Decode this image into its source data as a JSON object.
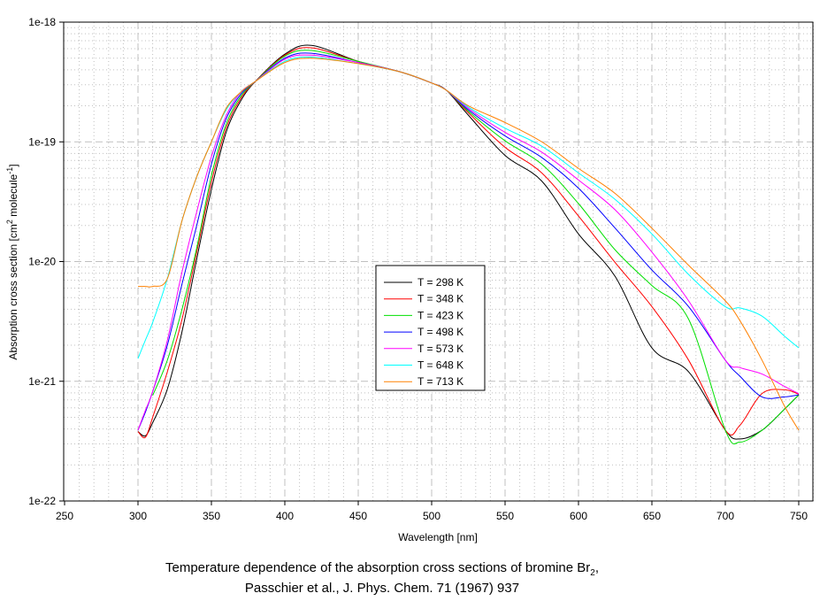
{
  "chart_data": {
    "type": "line",
    "title": "",
    "xlabel": "Wavelength [nm]",
    "ylabel_main": "Absorption cross section [cm",
    "ylabel_sup1": "2",
    "ylabel_mid": " molecule",
    "ylabel_sup2": "-1",
    "ylabel_end": "]",
    "yscale": "log",
    "xlim": [
      250,
      760
    ],
    "ylim": [
      1e-22,
      1e-18
    ],
    "xticks": [
      250,
      300,
      350,
      400,
      450,
      500,
      550,
      600,
      650,
      700,
      750
    ],
    "xtick_labels": [
      "250",
      "300",
      "350",
      "400",
      "450",
      "500",
      "550",
      "600",
      "650",
      "700",
      "750"
    ],
    "yticks": [
      1e-18,
      1e-19,
      1e-20,
      1e-21,
      1e-22
    ],
    "ytick_labels": [
      "1e-18",
      "1e-19",
      "1e-20",
      "1e-21",
      "1e-22"
    ],
    "grid": true,
    "legend_position": "center",
    "x": [
      300,
      305,
      310,
      320,
      330,
      340,
      350,
      360,
      370,
      380,
      400,
      418,
      450,
      480,
      500,
      510,
      525,
      550,
      575,
      600,
      625,
      650,
      675,
      700,
      710,
      725,
      740,
      750
    ],
    "series": [
      {
        "name": "T = 298 K",
        "color": "#000000",
        "values": [
          3.8e-22,
          3.5e-22,
          4.5e-22,
          8.6e-22,
          2.6e-21,
          1.05e-20,
          4e-20,
          1.2e-19,
          2.2e-19,
          3.2e-19,
          5.4e-19,
          6.4e-19,
          4.7e-19,
          3.8e-19,
          3.1e-19,
          2.7e-19,
          1.67e-19,
          7.7e-20,
          4.7e-20,
          1.7e-20,
          7.5e-21,
          1.9e-21,
          1.2e-21,
          3.9e-22,
          3.3e-22,
          3.9e-22,
          5.8e-22,
          7.7e-22
        ]
      },
      {
        "name": "T = 348 K",
        "color": "#ff0000",
        "values": [
          3.8e-22,
          3.4e-22,
          5e-22,
          1.2e-21,
          3.3e-21,
          1.2e-20,
          4.6e-20,
          1.3e-19,
          2.3e-19,
          3.2e-19,
          5.3e-19,
          6.1e-19,
          4.7e-19,
          3.8e-19,
          3.1e-19,
          2.7e-19,
          1.75e-19,
          9e-20,
          5.5e-20,
          2.4e-20,
          9.8e-21,
          4.2e-21,
          1.5e-21,
          3.9e-22,
          4.3e-22,
          7.9e-22,
          8.5e-22,
          7.8e-22
        ]
      },
      {
        "name": "T = 423 K",
        "color": "#00e000",
        "values": [
          null,
          null,
          7.6e-22,
          1.5e-21,
          4e-21,
          1.3e-20,
          5.2e-20,
          1.4e-19,
          2.4e-19,
          3.2e-19,
          5.2e-19,
          5.8e-19,
          4.7e-19,
          3.8e-19,
          3.1e-19,
          2.7e-19,
          1.8e-19,
          1.02e-19,
          6.5e-20,
          3.05e-20,
          1.25e-20,
          6.3e-21,
          3.3e-21,
          3.9e-22,
          3.1e-22,
          3.9e-22,
          5.8e-22,
          7.7e-22
        ]
      },
      {
        "name": "T = 498 K",
        "color": "#0000ff",
        "values": [
          3.9e-22,
          5.5e-22,
          8.2e-22,
          2e-21,
          6.5e-21,
          2e-20,
          6.5e-20,
          1.55e-19,
          2.5e-19,
          3.2e-19,
          5e-19,
          5.5e-19,
          4.6e-19,
          3.8e-19,
          3.1e-19,
          2.7e-19,
          1.85e-19,
          1.12e-19,
          7.4e-20,
          4.1e-20,
          1.9e-20,
          8.5e-21,
          4.2e-21,
          1.5e-21,
          1.1e-21,
          7.4e-22,
          7.4e-22,
          7.7e-22
        ]
      },
      {
        "name": "T = 573 K",
        "color": "#ff00ff",
        "values": [
          3.9e-22,
          5.7e-22,
          8.2e-22,
          2.2e-21,
          8.2e-21,
          2.6e-20,
          7.5e-20,
          1.65e-19,
          2.6e-19,
          3.2e-19,
          4.9e-19,
          5.3e-19,
          4.6e-19,
          3.8e-19,
          3.1e-19,
          2.7e-19,
          1.9e-19,
          1.2e-19,
          8.2e-20,
          4.8e-20,
          2.7e-20,
          1.2e-20,
          4.7e-21,
          1.5e-21,
          1.3e-21,
          1.15e-21,
          9.1e-22,
          7.9e-22
        ]
      },
      {
        "name": "T = 648 K",
        "color": "#00ffff",
        "values": [
          1.55e-21,
          2.2e-21,
          3.1e-21,
          7.2e-21,
          2.2e-20,
          5.1e-20,
          1e-19,
          1.85e-19,
          2.6e-19,
          3.2e-19,
          4.7e-19,
          5.1e-19,
          4.5e-19,
          3.8e-19,
          3.1e-19,
          2.7e-19,
          1.95e-19,
          1.3e-19,
          9.2e-20,
          5.5e-20,
          3.3e-20,
          1.7e-20,
          7.8e-21,
          4.2e-21,
          4.1e-21,
          3.5e-21,
          2.4e-21,
          1.9e-21
        ]
      },
      {
        "name": "T = 713 K",
        "color": "#ff8000",
        "values": [
          6.2e-21,
          6.2e-21,
          6.2e-21,
          7.2e-21,
          2.2e-20,
          5.1e-20,
          1e-19,
          1.9e-19,
          2.6e-19,
          3.2e-19,
          4.6e-19,
          5e-19,
          4.5e-19,
          3.8e-19,
          3.1e-19,
          2.7e-19,
          2e-19,
          1.45e-19,
          1e-19,
          6e-20,
          3.7e-20,
          1.9e-20,
          9.3e-21,
          4.7e-21,
          3.2e-21,
          1.5e-21,
          6.3e-22,
          3.9e-22
        ]
      }
    ]
  },
  "caption": {
    "line1_main": "Temperature dependence of the absorption cross sections of bromine Br",
    "line1_sub": "2",
    "line1_end": ",",
    "line2": "Passchier et al., J. Phys. Chem. 71 (1967) 937"
  }
}
